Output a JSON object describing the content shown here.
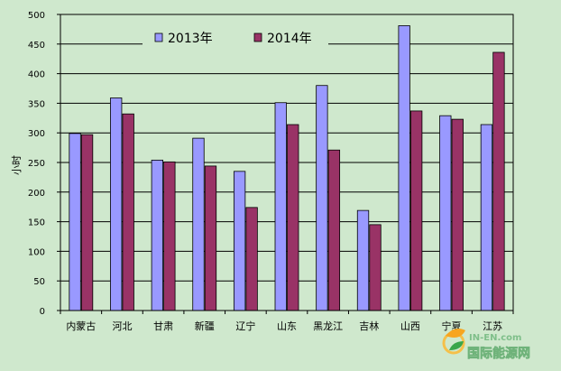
{
  "chart_data": {
    "type": "bar",
    "title": "",
    "xlabel": "",
    "ylabel": "小时",
    "ylim": [
      0,
      500
    ],
    "yticks": [
      0,
      50,
      100,
      150,
      200,
      250,
      300,
      350,
      400,
      450,
      500
    ],
    "grid": true,
    "legend_position": "top-center",
    "categories": [
      "内蒙古",
      "河北",
      "甘肃",
      "新疆",
      "辽宁",
      "山东",
      "黑龙江",
      "吉林",
      "山西",
      "宁夏",
      "江苏"
    ],
    "series": [
      {
        "name": "2013年",
        "color": "#9999ff",
        "values": [
          299,
          359,
          254,
          291,
          235,
          351,
          380,
          169,
          481,
          329,
          314
        ]
      },
      {
        "name": "2014年",
        "color": "#993366",
        "values": [
          297,
          332,
          251,
          244,
          174,
          314,
          271,
          145,
          337,
          323,
          436
        ]
      }
    ]
  },
  "watermark": {
    "brand": "IN-EN.com",
    "text": "国际能源网"
  }
}
